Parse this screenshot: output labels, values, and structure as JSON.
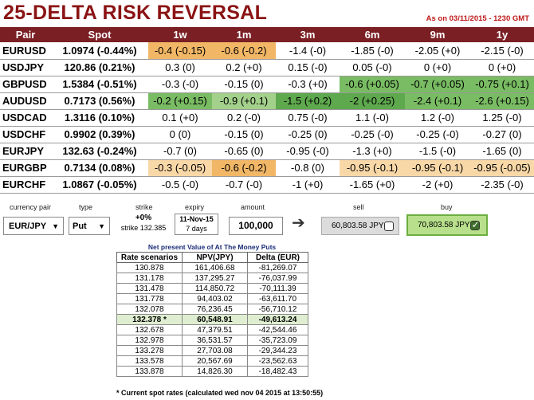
{
  "header": {
    "title": "25-DELTA RISK REVERSAL",
    "as_of": "As on 03/11/2015 - 1230 GMT"
  },
  "table": {
    "columns": [
      "Pair",
      "Spot",
      "1w",
      "1m",
      "3m",
      "6m",
      "9m",
      "1y"
    ],
    "rows": [
      {
        "pair": "EURUSD",
        "spot": "1.0974 (-0.44%)",
        "cells": [
          "-0.4 (-0.15)",
          "-0.6 (-0.2)",
          "-1.4 (-0)",
          "-1.85 (-0)",
          "-2.05 (+0)",
          "-2.15 (-0)"
        ]
      },
      {
        "pair": "USDJPY",
        "spot": "120.86 (0.21%)",
        "cells": [
          "0.3 (0)",
          "0.2 (+0)",
          "0.15 (-0)",
          "0.05 (-0)",
          "0 (+0)",
          "0 (+0)"
        ]
      },
      {
        "pair": "GBPUSD",
        "spot": "1.5384 (-0.51%)",
        "cells": [
          "-0.3 (-0)",
          "-0.15 (0)",
          "-0.3 (+0)",
          "-0.6 (+0.05)",
          "-0.7 (+0.05)",
          "-0.75 (+0.1)"
        ]
      },
      {
        "pair": "AUDUSD",
        "spot": "0.7173 (0.56%)",
        "cells": [
          "-0.2 (+0.15)",
          "-0.9 (+0.1)",
          "-1.5 (+0.2)",
          "-2 (+0.25)",
          "-2.4 (+0.1)",
          "-2.6 (+0.15)"
        ]
      },
      {
        "pair": "USDCAD",
        "spot": "1.3116 (0.10%)",
        "cells": [
          "0.1 (+0)",
          "0.2 (-0)",
          "0.75 (-0)",
          "1.1 (-0)",
          "1.2 (-0)",
          "1.25 (-0)"
        ]
      },
      {
        "pair": "USDCHF",
        "spot": "0.9902 (0.39%)",
        "cells": [
          "0 (0)",
          "-0.15 (0)",
          "-0.25 (0)",
          "-0.25 (-0)",
          "-0.25 (-0)",
          "-0.27 (0)"
        ]
      },
      {
        "pair": "EURJPY",
        "spot": "132.63 (-0.24%)",
        "cells": [
          "-0.7 (0)",
          "-0.65 (0)",
          "-0.95 (-0)",
          "-1.3 (+0)",
          "-1.5 (-0)",
          "-1.65 (0)"
        ]
      },
      {
        "pair": "EURGBP",
        "spot": "0.7134 (0.08%)",
        "cells": [
          "-0.3 (-0.05)",
          "-0.6 (-0.2)",
          "-0.8 (0)",
          "-0.95 (-0.1)",
          "-0.95 (-0.1)",
          "-0.95 (-0.05)"
        ]
      },
      {
        "pair": "EURCHF",
        "spot": "1.0867 (-0.05%)",
        "cells": [
          "-0.5 (-0)",
          "-0.7 (-0)",
          "-1 (+0)",
          "-1.65 (+0)",
          "-2 (+0)",
          "-2.35 (-0)"
        ]
      }
    ],
    "highlight_colors": {
      "orange": "#f2b766",
      "light_orange": "#f9d8a8",
      "green": "#79bc63",
      "light_green": "#a3d08b",
      "dark_green": "#5ea84d"
    }
  },
  "calculator": {
    "labels": {
      "currency_pair": "currency pair",
      "type": "type",
      "strike": "strike",
      "expiry": "expiry",
      "amount": "amount",
      "sell": "sell",
      "buy": "buy"
    },
    "currency_pair": "EUR/JPY",
    "type": "Put",
    "strike_pct": "+0%",
    "strike_value": "strike 132.385",
    "expiry_date": "11-Nov-15",
    "expiry_days": "7 days",
    "amount": "100,000",
    "sell_value": "60,803.58 JPY",
    "buy_value": "70,803.58 JPY",
    "selected": "buy"
  },
  "npv": {
    "title": "Net present Value of At The Money Puts",
    "columns": [
      "Rate scenarios",
      "NPV(JPY)",
      "Delta (EUR)"
    ],
    "rows": [
      [
        "130.878",
        "161,406.68",
        "-81,269.07"
      ],
      [
        "131.178",
        "137,295.27",
        "-76,037.99"
      ],
      [
        "131.478",
        "114,850.72",
        "-70,111.39"
      ],
      [
        "131.778",
        "94,403.02",
        "-63,611.70"
      ],
      [
        "132.078",
        "76,236.45",
        "-56,710.12"
      ],
      [
        "132.378 *",
        "60,548.91",
        "-49,613.24"
      ],
      [
        "132.678",
        "47,379.51",
        "-42,544.46"
      ],
      [
        "132.978",
        "36,531.57",
        "-35,723.09"
      ],
      [
        "133.278",
        "27,703.08",
        "-29,344.23"
      ],
      [
        "133.578",
        "20,567.69",
        "-23,562.63"
      ],
      [
        "133.878",
        "14,826.30",
        "-18,482.43"
      ]
    ],
    "highlight_row": 5,
    "footnote": "* Current spot rates (calculated wed nov 04 2015 at 13:50:55)"
  }
}
